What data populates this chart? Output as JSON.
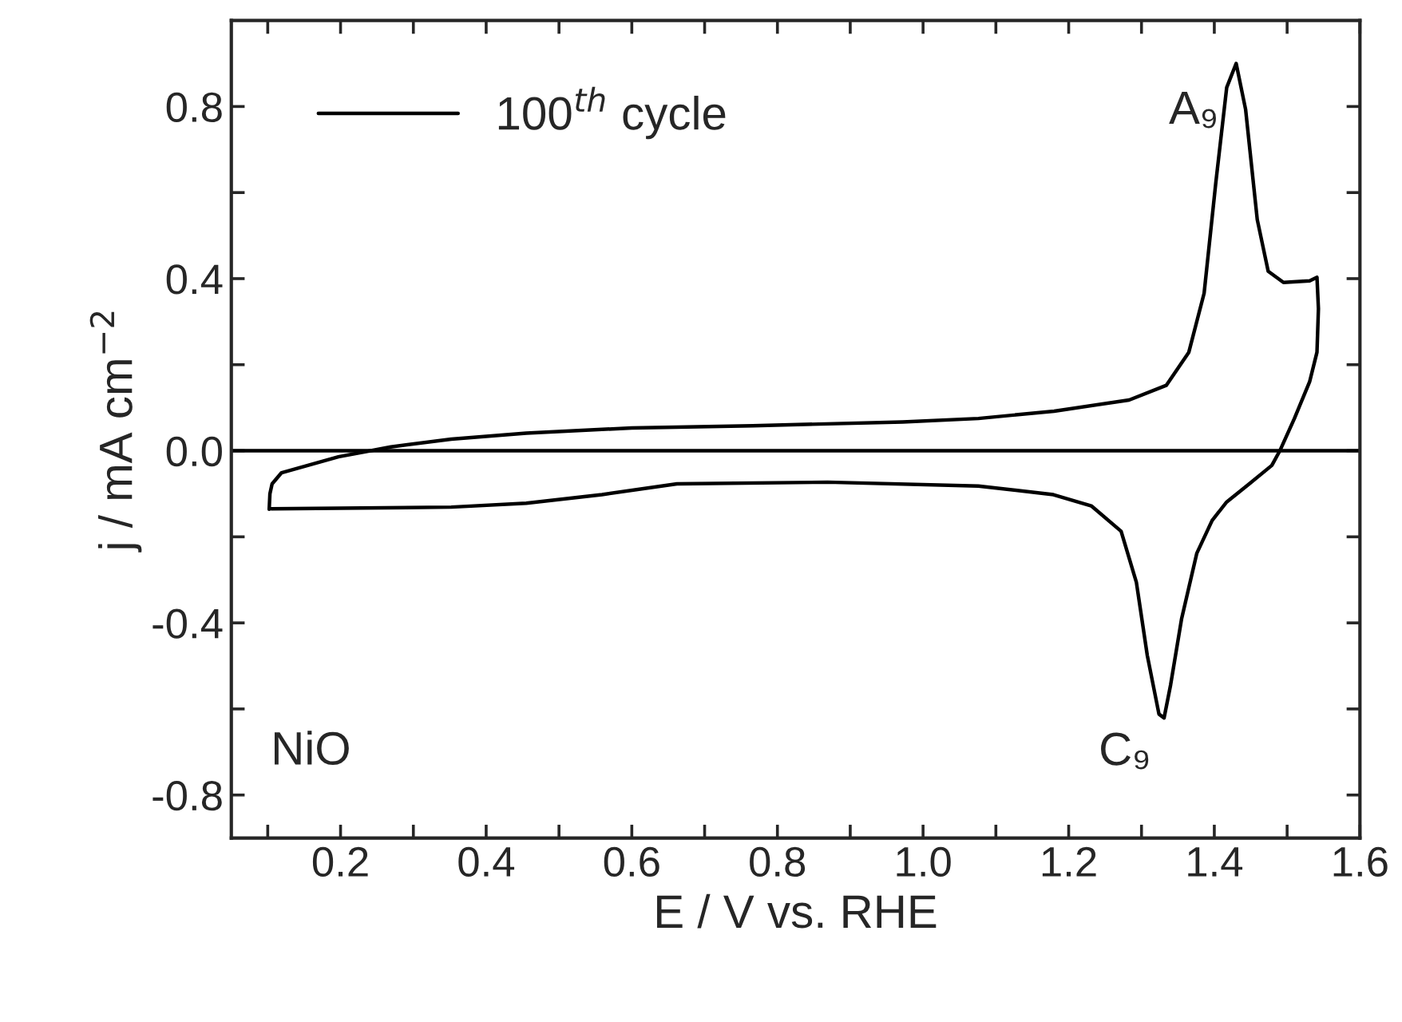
{
  "chart_data": {
    "type": "line",
    "xlabel": "E / V vs. RHE",
    "ylabel": "j / mA cm$^{−2}$",
    "xlim": [
      0.05,
      1.6
    ],
    "ylim": [
      -0.9,
      1.0
    ],
    "xticks": [
      {
        "value": 0.1,
        "label": null
      },
      0.2,
      {
        "value": 0.3,
        "label": null
      },
      0.4,
      {
        "value": 0.5,
        "label": null
      },
      0.6,
      {
        "value": 0.7,
        "label": null
      },
      0.8,
      {
        "value": 0.9,
        "label": null
      },
      "1.0",
      {
        "value": 1.1,
        "label": null
      },
      1.2,
      {
        "value": 1.3,
        "label": null
      },
      1.4,
      {
        "value": 1.5,
        "label": null
      },
      1.6
    ],
    "yticks": [
      {
        "value": -0.8,
        "label": "-0.8"
      },
      {
        "value": -0.6,
        "label": null
      },
      {
        "value": -0.4,
        "label": "-0.4"
      },
      {
        "value": -0.2,
        "label": null
      },
      {
        "value": 0.0,
        "label": "0.0"
      },
      {
        "value": 0.2,
        "label": null
      },
      {
        "value": 0.4,
        "label": "0.4"
      },
      {
        "value": 0.6,
        "label": null
      },
      {
        "value": 0.8,
        "label": "0.8"
      }
    ],
    "series": [
      {
        "name": "100$^{th}$ cycle",
        "color": "#000000",
        "x": [
          0.102,
          0.103,
          0.106,
          0.119,
          0.197,
          0.269,
          0.352,
          0.455,
          0.6,
          0.766,
          0.972,
          1.076,
          1.18,
          1.283,
          1.334,
          1.365,
          1.386,
          1.402,
          1.417,
          1.43,
          1.443,
          1.459,
          1.474,
          1.495,
          1.531,
          1.541,
          1.543,
          1.541,
          1.531,
          1.51,
          1.49,
          1.479,
          1.448,
          1.417,
          1.397,
          1.376,
          1.355,
          1.34,
          1.331,
          1.324,
          1.308,
          1.293,
          1.272,
          1.231,
          1.179,
          1.076,
          0.869,
          0.662,
          0.559,
          0.455,
          0.352,
          0.105
        ],
        "values": [
          -0.136,
          -0.1,
          -0.077,
          -0.051,
          -0.014,
          0.009,
          0.027,
          0.041,
          0.053,
          0.058,
          0.067,
          0.075,
          0.092,
          0.118,
          0.152,
          0.229,
          0.366,
          0.622,
          0.844,
          0.9,
          0.793,
          0.537,
          0.417,
          0.391,
          0.395,
          0.403,
          0.33,
          0.229,
          0.161,
          0.075,
          0.0,
          -0.034,
          -0.077,
          -0.119,
          -0.162,
          -0.238,
          -0.391,
          -0.544,
          -0.621,
          -0.612,
          -0.476,
          -0.306,
          -0.187,
          -0.128,
          -0.102,
          -0.082,
          -0.073,
          -0.077,
          -0.102,
          -0.122,
          -0.131,
          -0.135
        ]
      }
    ],
    "ref_lines": [
      {
        "axis": "y",
        "value": 0.0,
        "color": "#000000"
      }
    ],
    "annotations": [
      {
        "text": "A₉",
        "x": 1.43,
        "y": 0.9
      },
      {
        "text": "C₉",
        "x": 1.331,
        "y": -0.621
      },
      "NiO"
    ],
    "legend": "top left",
    "grid": false,
    "line_style": "solid",
    "marker": "none"
  }
}
